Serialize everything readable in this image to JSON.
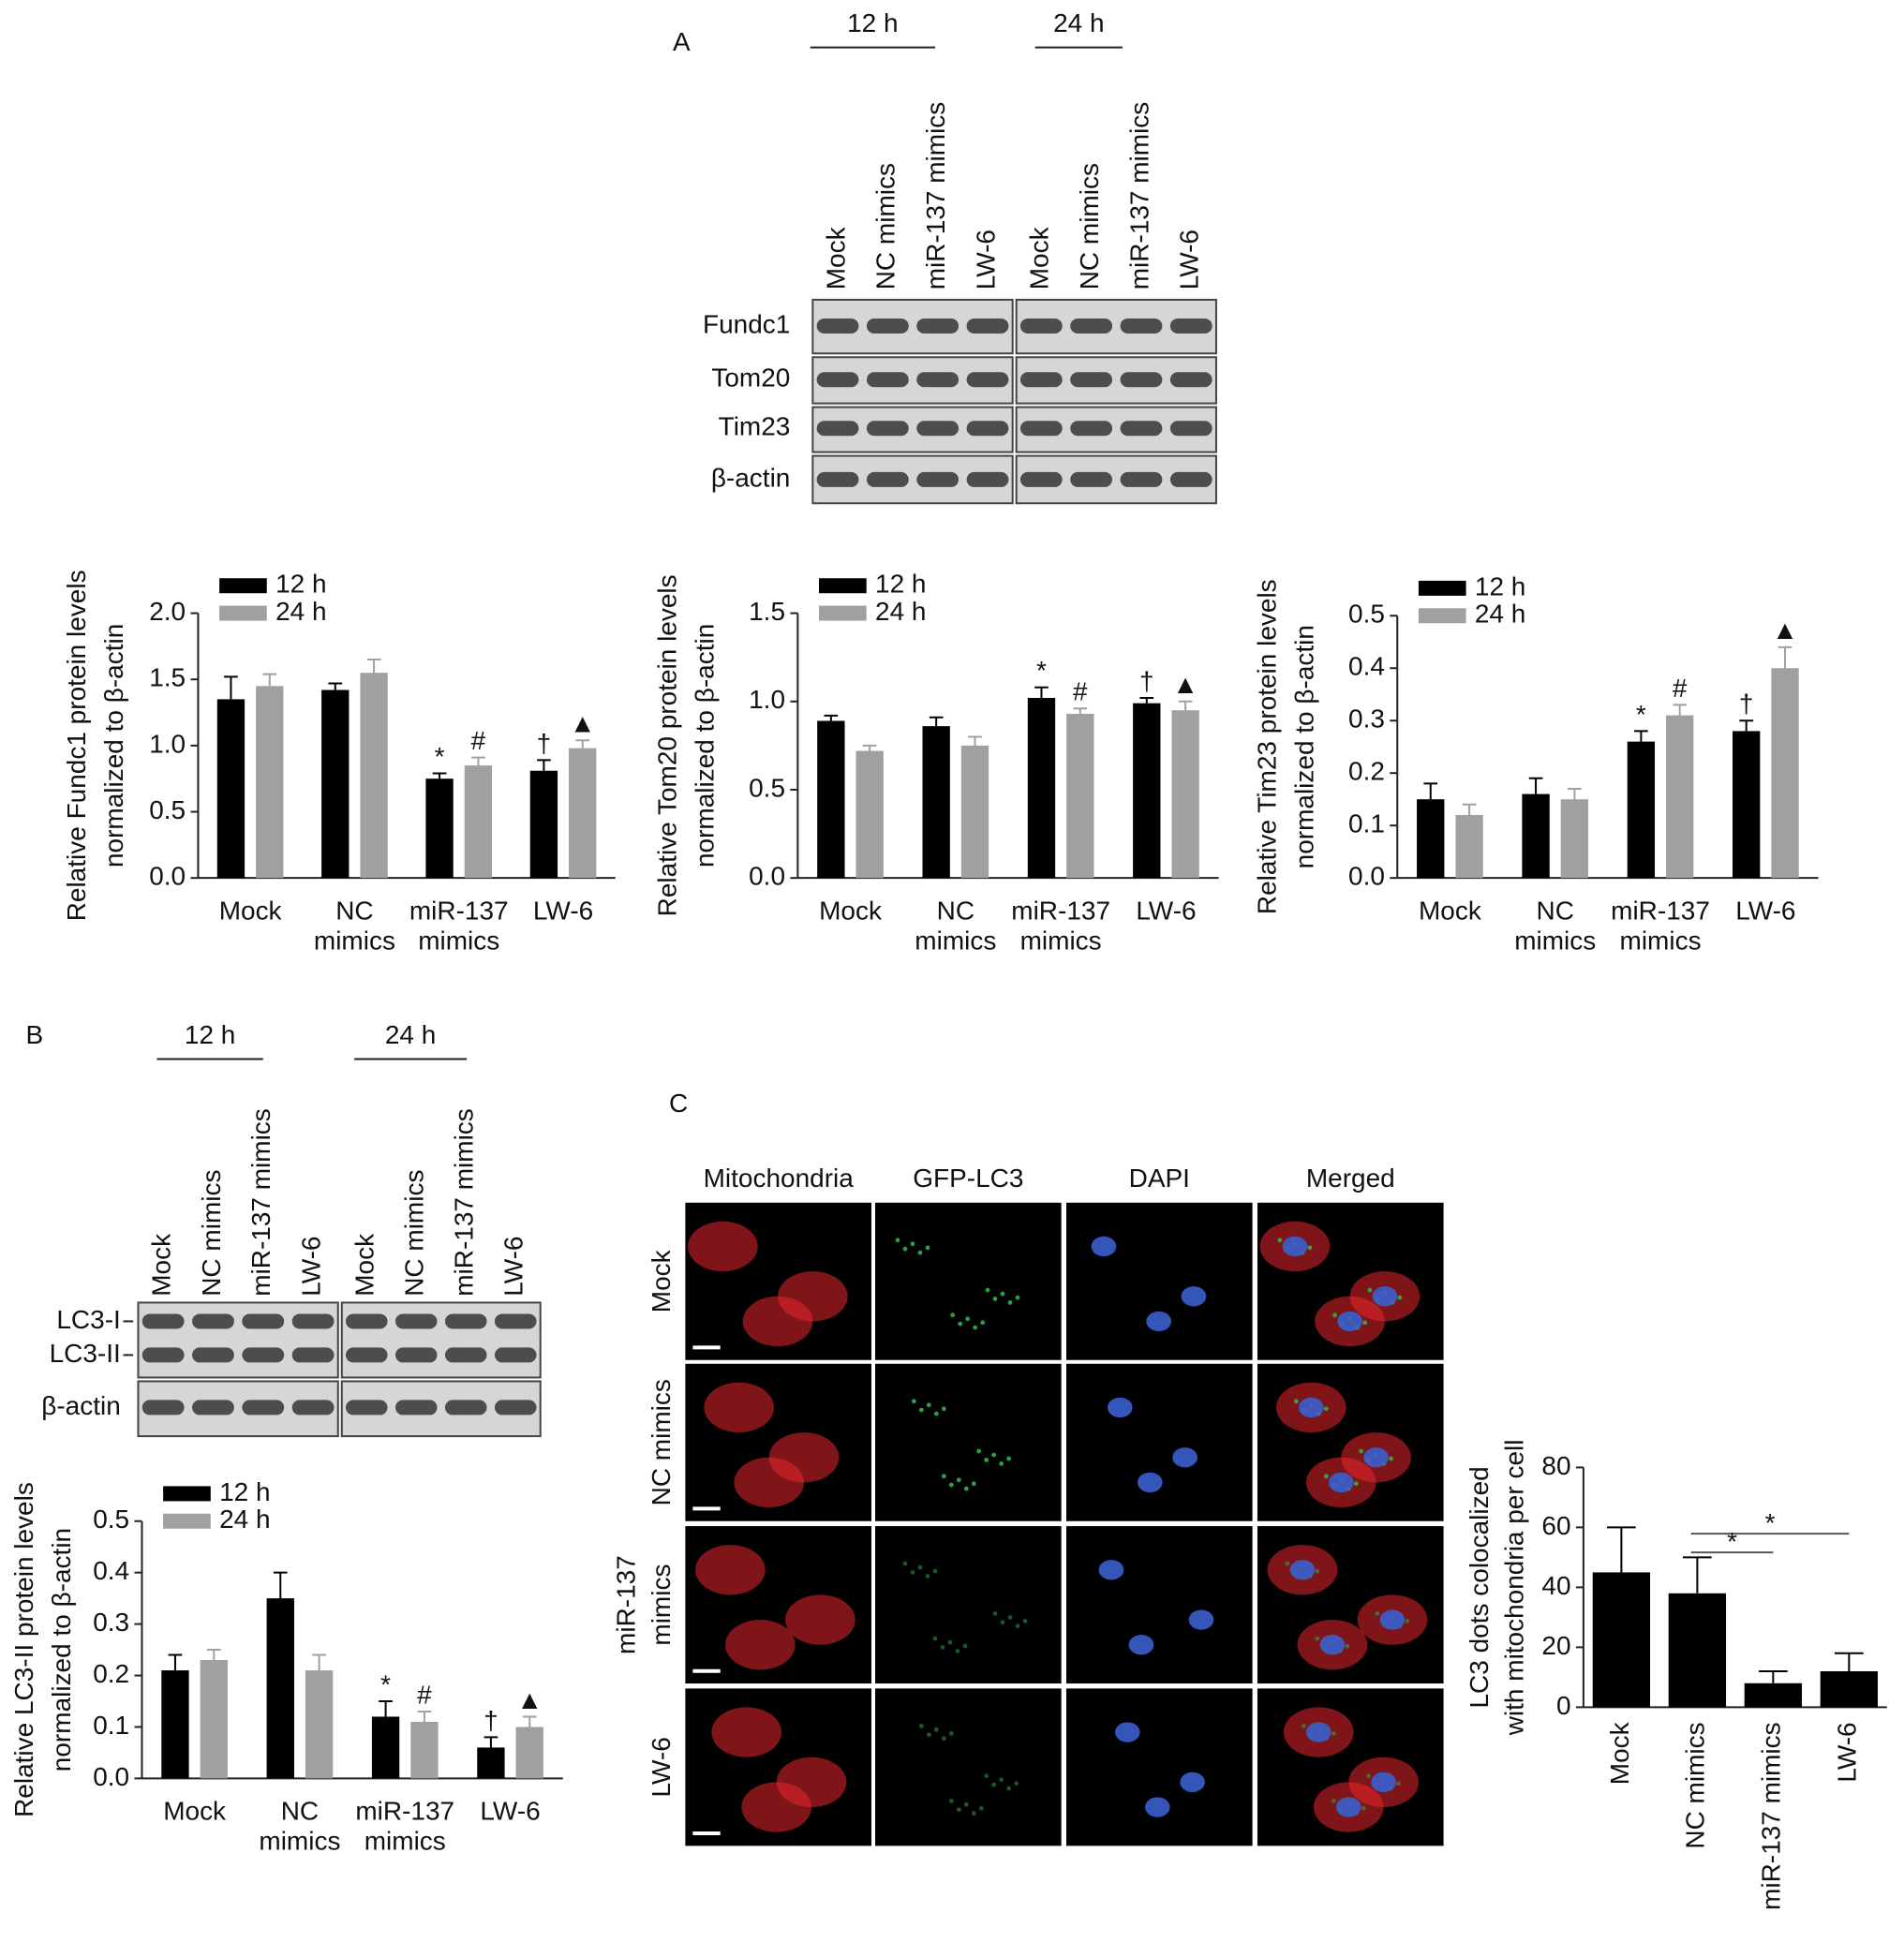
{
  "panels": [
    "A",
    "B",
    "C"
  ],
  "blots": [
    {
      "groups": [
        "12 h",
        "24 h"
      ],
      "lanes": [
        "Mock",
        "NC mimics",
        "miR-137 mimics",
        "LW-6"
      ],
      "rows": [
        "Fundc1",
        "Tom20",
        "Tim23",
        "β-actin"
      ]
    },
    {
      "groups": [
        "12 h",
        "24 h"
      ],
      "lanes": [
        "Mock",
        "NC mimics",
        "miR-137 mimics",
        "LW-6"
      ],
      "rows": [
        "LC3-I",
        "LC3-II",
        "β-actin"
      ]
    }
  ],
  "microscopy": {
    "columns": [
      {
        "label": "Mitochondria",
        "color": "#e8262b"
      },
      {
        "label": "GFP-LC3",
        "color": "#2db34a"
      },
      {
        "label": "DAPI",
        "color": "#3a5fcd"
      },
      {
        "label": "Merged",
        "color": "#e8c32a"
      }
    ],
    "rows": [
      [
        "Mock"
      ],
      [
        "NC mimics"
      ],
      [
        "miR-137",
        "mimics"
      ],
      [
        "LW-6"
      ]
    ]
  },
  "chart_data": [
    {
      "type": "bar",
      "ylabel": [
        "Relative Fundc1 protein levels",
        "normalized to β-actin"
      ],
      "categories": [
        "Mock",
        "NC mimics",
        "miR-137 mimics",
        "LW-6"
      ],
      "series": [
        {
          "name": "12 h",
          "color": "#000000",
          "values": [
            1.35,
            1.42,
            0.75,
            0.81
          ],
          "errors": [
            0.17,
            0.05,
            0.04,
            0.08
          ],
          "markers": [
            null,
            null,
            "*",
            "†"
          ]
        },
        {
          "name": "24 h",
          "color": "#a0a0a3",
          "values": [
            1.45,
            1.55,
            0.85,
            0.98
          ],
          "errors": [
            0.09,
            0.1,
            0.06,
            0.06
          ],
          "markers": [
            null,
            null,
            "#",
            "▲"
          ]
        }
      ],
      "ylim": [
        0,
        2.0
      ],
      "yticks": [
        {
          "value": 0,
          "label": "0.0"
        },
        {
          "value": 0.5,
          "label": "0.5"
        },
        {
          "value": 1,
          "label": "1.0"
        },
        {
          "value": 1.5,
          "label": "1.5"
        },
        {
          "value": 2,
          "label": "2.0"
        }
      ]
    },
    {
      "type": "bar",
      "ylabel": [
        "Relative Tom20 protein levels",
        "normalized to β-actin"
      ],
      "categories": [
        "Mock",
        "NC mimics",
        "miR-137 mimics",
        "LW-6"
      ],
      "series": [
        {
          "name": "12 h",
          "color": "#000000",
          "values": [
            0.89,
            0.86,
            1.02,
            0.99
          ],
          "errors": [
            0.03,
            0.05,
            0.06,
            0.03
          ],
          "markers": [
            null,
            null,
            "*",
            "†"
          ]
        },
        {
          "name": "24 h",
          "color": "#a0a0a3",
          "values": [
            0.72,
            0.75,
            0.93,
            0.95
          ],
          "errors": [
            0.03,
            0.05,
            0.03,
            0.05
          ],
          "markers": [
            null,
            null,
            "#",
            "▲"
          ]
        }
      ],
      "ylim": [
        0,
        1.5
      ],
      "yticks": [
        {
          "value": 0,
          "label": "0.0"
        },
        {
          "value": 0.5,
          "label": "0.5"
        },
        {
          "value": 1,
          "label": "1.0"
        },
        {
          "value": 1.5,
          "label": "1.5"
        }
      ]
    },
    {
      "type": "bar",
      "ylabel": [
        "Relative Tim23 protein levels",
        "normalized to β-actin"
      ],
      "categories": [
        "Mock",
        "NC mimics",
        "miR-137 mimics",
        "LW-6"
      ],
      "series": [
        {
          "name": "12 h",
          "color": "#000000",
          "values": [
            0.15,
            0.16,
            0.26,
            0.28
          ],
          "errors": [
            0.03,
            0.03,
            0.02,
            0.02
          ],
          "markers": [
            null,
            null,
            "*",
            "†"
          ]
        },
        {
          "name": "24 h",
          "color": "#a0a0a3",
          "values": [
            0.12,
            0.15,
            0.31,
            0.4
          ],
          "errors": [
            0.02,
            0.02,
            0.02,
            0.04
          ],
          "markers": [
            null,
            null,
            "#",
            "▲"
          ]
        }
      ],
      "ylim": [
        0,
        0.5
      ],
      "yticks": [
        {
          "value": 0,
          "label": "0.0"
        },
        0.1,
        0.2,
        0.3,
        0.4,
        0.5
      ]
    },
    {
      "type": "bar",
      "ylabel": [
        "Relative LC3-II protein levels",
        "normalized to β-actin"
      ],
      "categories": [
        "Mock",
        "NC mimics",
        "miR-137 mimics",
        "LW-6"
      ],
      "series": [
        {
          "name": "12 h",
          "color": "#000000",
          "values": [
            0.21,
            0.35,
            0.12,
            0.06
          ],
          "errors": [
            0.03,
            0.05,
            0.03,
            0.02
          ],
          "markers": [
            null,
            null,
            "*",
            "†"
          ]
        },
        {
          "name": "24 h",
          "color": "#a0a0a3",
          "values": [
            0.23,
            0.21,
            0.11,
            0.1
          ],
          "errors": [
            0.02,
            0.03,
            0.02,
            0.02
          ],
          "markers": [
            null,
            null,
            "#",
            "▲"
          ]
        }
      ],
      "ylim": [
        0,
        0.5
      ],
      "yticks": [
        {
          "value": 0,
          "label": "0.0"
        },
        0.1,
        0.2,
        0.3,
        0.4,
        0.5
      ]
    },
    {
      "type": "bar",
      "ylabel": [
        "LC3 dots colocalized",
        "with mitochondria per cell"
      ],
      "categories": [
        "Mock",
        "NC mimics",
        "miR-137 mimics",
        "LW-6"
      ],
      "series": [
        {
          "color": "#000000",
          "values": [
            45,
            38,
            8,
            12
          ],
          "errors": [
            15,
            12,
            4,
            6
          ]
        }
      ],
      "comparisons": [
        {
          "from": 1,
          "to": 3,
          "label": "*"
        },
        {
          "from": 1,
          "to": 2,
          "label": "*"
        }
      ],
      "ylim": [
        0,
        80
      ],
      "yticks": [
        0,
        20,
        40,
        60,
        80
      ]
    }
  ]
}
